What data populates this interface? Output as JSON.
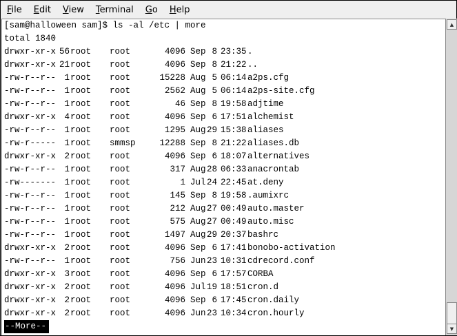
{
  "menu": [
    {
      "label": "File",
      "key": "F",
      "rest": "ile"
    },
    {
      "label": "Edit",
      "key": "E",
      "rest": "dit"
    },
    {
      "label": "View",
      "key": "V",
      "rest": "iew"
    },
    {
      "label": "Terminal",
      "key": "T",
      "rest": "erminal"
    },
    {
      "label": "Go",
      "key": "G",
      "rest": "o"
    },
    {
      "label": "Help",
      "key": "H",
      "rest": "elp"
    }
  ],
  "terminal": {
    "prompt": "[sam@halloween sam]$ ls -al /etc | more",
    "total": "total 1840",
    "rows": [
      [
        "drwxr-xr-x",
        "56",
        "root",
        "root",
        "4096",
        "Sep",
        "8",
        "23:35",
        "."
      ],
      [
        "drwxr-xr-x",
        "21",
        "root",
        "root",
        "4096",
        "Sep",
        "8",
        "21:22",
        ".."
      ],
      [
        "-rw-r--r--",
        "1",
        "root",
        "root",
        "15228",
        "Aug",
        "5",
        "06:14",
        "a2ps.cfg"
      ],
      [
        "-rw-r--r--",
        "1",
        "root",
        "root",
        "2562",
        "Aug",
        "5",
        "06:14",
        "a2ps-site.cfg"
      ],
      [
        "-rw-r--r--",
        "1",
        "root",
        "root",
        "46",
        "Sep",
        "8",
        "19:58",
        "adjtime"
      ],
      [
        "drwxr-xr-x",
        "4",
        "root",
        "root",
        "4096",
        "Sep",
        "6",
        "17:51",
        "alchemist"
      ],
      [
        "-rw-r--r--",
        "1",
        "root",
        "root",
        "1295",
        "Aug",
        "29",
        "15:38",
        "aliases"
      ],
      [
        "-rw-r-----",
        "1",
        "root",
        "smmsp",
        "12288",
        "Sep",
        "8",
        "21:22",
        "aliases.db"
      ],
      [
        "drwxr-xr-x",
        "2",
        "root",
        "root",
        "4096",
        "Sep",
        "6",
        "18:07",
        "alternatives"
      ],
      [
        "-rw-r--r--",
        "1",
        "root",
        "root",
        "317",
        "Aug",
        "28",
        "06:33",
        "anacrontab"
      ],
      [
        "-rw-------",
        "1",
        "root",
        "root",
        "1",
        "Jul",
        "24",
        "22:45",
        "at.deny"
      ],
      [
        "-rw-r--r--",
        "1",
        "root",
        "root",
        "145",
        "Sep",
        "8",
        "19:58",
        ".aumixrc"
      ],
      [
        "-rw-r--r--",
        "1",
        "root",
        "root",
        "212",
        "Aug",
        "27",
        "00:49",
        "auto.master"
      ],
      [
        "-rw-r--r--",
        "1",
        "root",
        "root",
        "575",
        "Aug",
        "27",
        "00:49",
        "auto.misc"
      ],
      [
        "-rw-r--r--",
        "1",
        "root",
        "root",
        "1497",
        "Aug",
        "29",
        "20:37",
        "bashrc"
      ],
      [
        "drwxr-xr-x",
        "2",
        "root",
        "root",
        "4096",
        "Sep",
        "6",
        "17:41",
        "bonobo-activation"
      ],
      [
        "-rw-r--r--",
        "1",
        "root",
        "root",
        "756",
        "Jun",
        "23",
        "10:31",
        "cdrecord.conf"
      ],
      [
        "drwxr-xr-x",
        "3",
        "root",
        "root",
        "4096",
        "Sep",
        "6",
        "17:57",
        "CORBA"
      ],
      [
        "drwxr-xr-x",
        "2",
        "root",
        "root",
        "4096",
        "Jul",
        "19",
        "18:51",
        "cron.d"
      ],
      [
        "drwxr-xr-x",
        "2",
        "root",
        "root",
        "4096",
        "Sep",
        "6",
        "17:45",
        "cron.daily"
      ],
      [
        "drwxr-xr-x",
        "2",
        "root",
        "root",
        "4096",
        "Jun",
        "23",
        "10:34",
        "cron.hourly"
      ]
    ],
    "pager": "--More--"
  },
  "scrollbar": {
    "up_icon": "arrow-up-icon",
    "down_icon": "arrow-down-icon",
    "position": 1.0
  }
}
